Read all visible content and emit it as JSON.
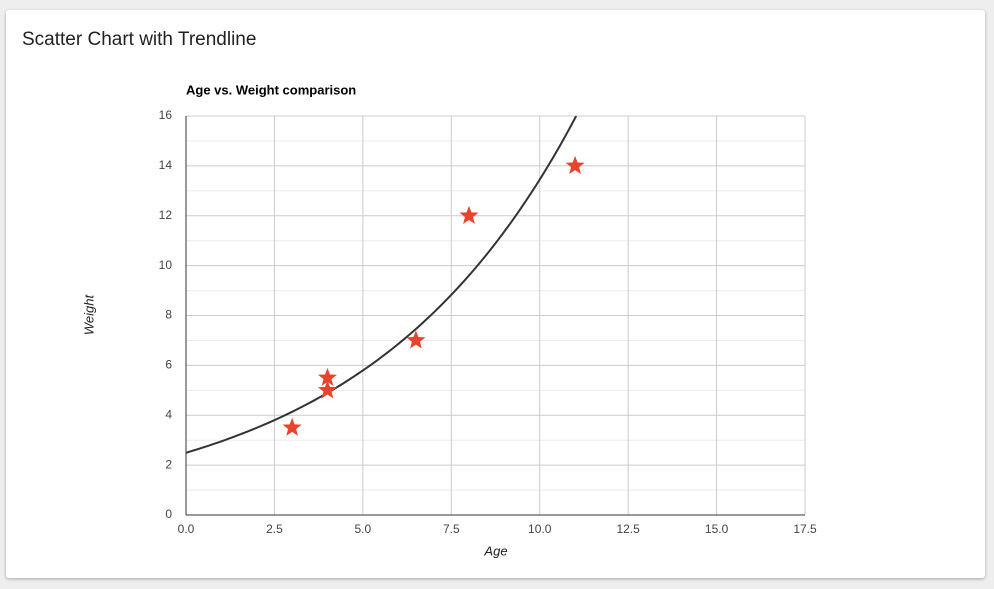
{
  "card_title": "Scatter Chart with Trendline",
  "chart_data": {
    "type": "scatter",
    "title": "Age vs. Weight comparison",
    "x_label": "Age",
    "y_label": "Weight",
    "x": [
      3,
      4,
      4,
      6.5,
      8,
      11
    ],
    "values": [
      3.5,
      5.5,
      5,
      7,
      12,
      14
    ],
    "color": "#e8432d",
    "marker": "star",
    "trendline": {
      "type": "exponential",
      "color": "#333333"
    },
    "xlim": [
      0,
      17.5
    ],
    "xticks": [
      {
        "value": 0,
        "label": "0.0"
      },
      2.5,
      {
        "value": 5,
        "label": "5.0"
      },
      7.5,
      {
        "value": 10,
        "label": "10.0"
      },
      12.5,
      {
        "value": 15,
        "label": "15.0"
      },
      17.5
    ],
    "ylim": [
      0,
      16
    ],
    "yticks": [
      0,
      2,
      4,
      6,
      8,
      10,
      12,
      14,
      16
    ],
    "grid": true,
    "y_minor_gridlines": 1
  }
}
